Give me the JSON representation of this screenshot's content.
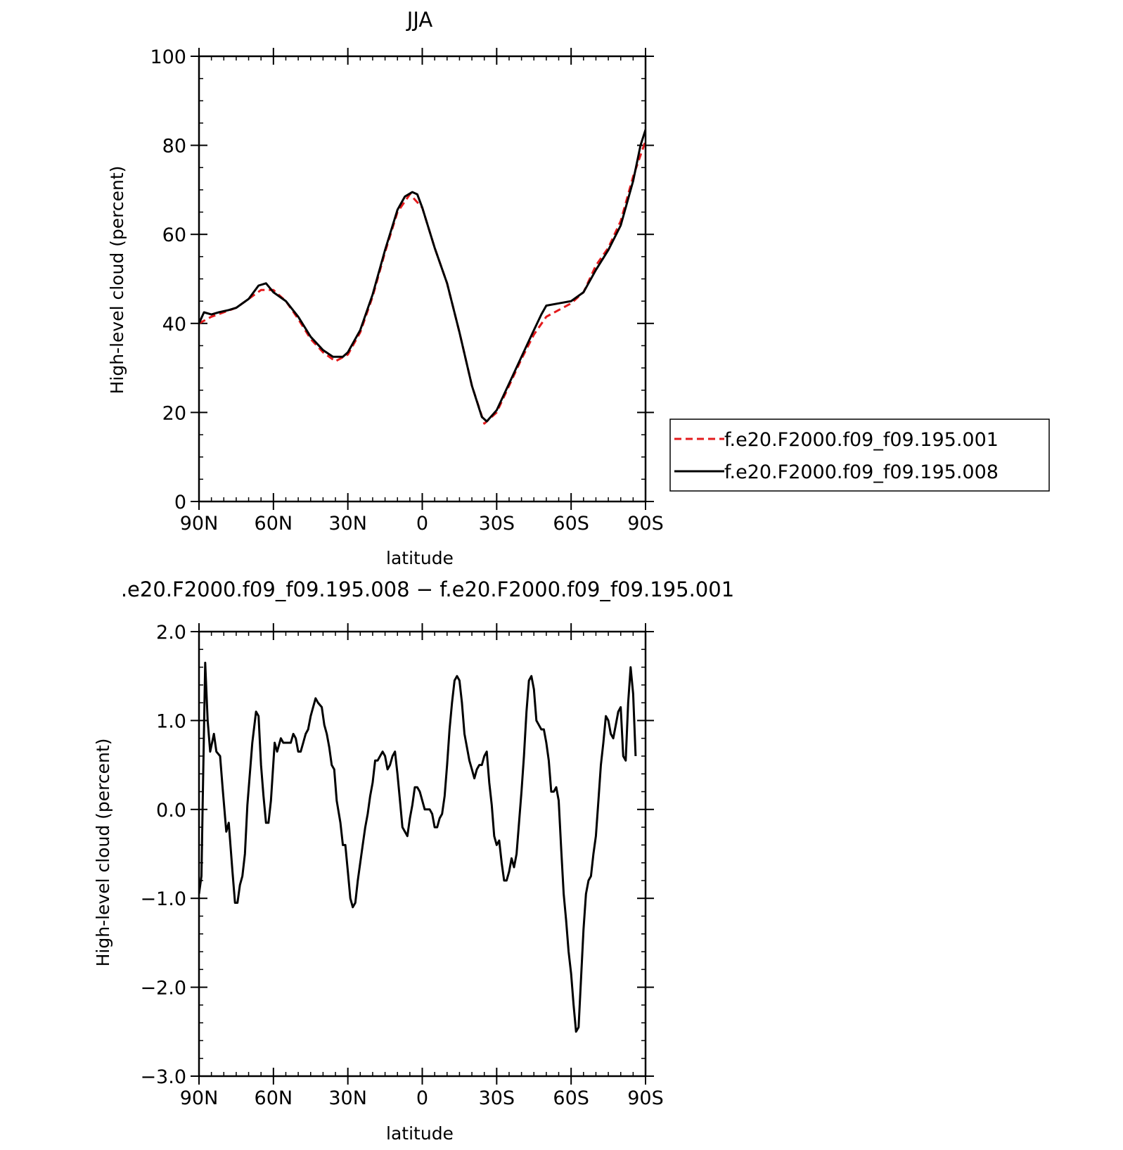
{
  "chart_data": [
    {
      "type": "line",
      "title": "JJA",
      "xlabel": "latitude",
      "ylabel": "High-level cloud (percent)",
      "xlim": [
        90,
        -90
      ],
      "ylim": [
        0,
        100
      ],
      "x_ticks": [
        {
          "value": 90,
          "label": "90N"
        },
        {
          "value": 60,
          "label": "60N"
        },
        {
          "value": 30,
          "label": "30N"
        },
        {
          "value": 0,
          "label": "0"
        },
        {
          "value": -30,
          "label": "30S"
        },
        {
          "value": -60,
          "label": "60S"
        },
        {
          "value": -90,
          "label": "90S"
        }
      ],
      "y_ticks": [
        {
          "value": 0,
          "label": "0"
        },
        {
          "value": 20,
          "label": "20"
        },
        {
          "value": 40,
          "label": "40"
        },
        {
          "value": 60,
          "label": "60"
        },
        {
          "value": 80,
          "label": "80"
        },
        {
          "value": 100,
          "label": "100"
        }
      ],
      "legend_position": "right",
      "series": [
        {
          "name": "f.e20.F2000.f09_f09.195.001",
          "color": "#e31a1c",
          "dash": "dashed",
          "points": [
            [
              90,
              40
            ],
            [
              85,
              41.5
            ],
            [
              80,
              42.5
            ],
            [
              75,
              43.5
            ],
            [
              70,
              45.5
            ],
            [
              65,
              47.5
            ],
            [
              60,
              47.5
            ],
            [
              55,
              45
            ],
            [
              50,
              41
            ],
            [
              45,
              36.5
            ],
            [
              40,
              33.5
            ],
            [
              35,
              31.5
            ],
            [
              30,
              33
            ],
            [
              25,
              38
            ],
            [
              20,
              46
            ],
            [
              15,
              56
            ],
            [
              10,
              65
            ],
            [
              5,
              69
            ],
            [
              0,
              66
            ],
            [
              -5,
              57
            ],
            [
              -10,
              49
            ],
            [
              -15,
              38
            ],
            [
              -20,
              26
            ],
            [
              -25,
              17.5
            ],
            [
              -30,
              20
            ],
            [
              -35,
              26
            ],
            [
              -40,
              32
            ],
            [
              -45,
              37.5
            ],
            [
              -50,
              41.5
            ],
            [
              -55,
              43
            ],
            [
              -60,
              44.5
            ],
            [
              -65,
              47
            ],
            [
              -70,
              53
            ],
            [
              -75,
              57
            ],
            [
              -80,
              63
            ],
            [
              -85,
              73
            ],
            [
              -90,
              81
            ],
            [
              -91,
              82.5
            ]
          ]
        },
        {
          "name": "f.e20.F2000.f09_f09.195.008",
          "color": "#000000",
          "dash": "solid",
          "points": [
            [
              90,
              40
            ],
            [
              88,
              42.5
            ],
            [
              85,
              42
            ],
            [
              82,
              42.5
            ],
            [
              78,
              43
            ],
            [
              75,
              43.5
            ],
            [
              70,
              45.5
            ],
            [
              66,
              48.5
            ],
            [
              63,
              49
            ],
            [
              60,
              47
            ],
            [
              55,
              45
            ],
            [
              50,
              41.5
            ],
            [
              45,
              37
            ],
            [
              40,
              34
            ],
            [
              36,
              32.5
            ],
            [
              32,
              32.5
            ],
            [
              30,
              33.5
            ],
            [
              25,
              38.5
            ],
            [
              20,
              46.5
            ],
            [
              15,
              56.5
            ],
            [
              10,
              65.5
            ],
            [
              7,
              68.5
            ],
            [
              4,
              69.5
            ],
            [
              2,
              69
            ],
            [
              0,
              66
            ],
            [
              -5,
              57
            ],
            [
              -10,
              49
            ],
            [
              -15,
              38
            ],
            [
              -20,
              26
            ],
            [
              -24,
              19
            ],
            [
              -26,
              18
            ],
            [
              -30,
              20.5
            ],
            [
              -35,
              26.5
            ],
            [
              -40,
              32.5
            ],
            [
              -45,
              38.5
            ],
            [
              -48,
              42
            ],
            [
              -50,
              44
            ],
            [
              -55,
              44.5
            ],
            [
              -60,
              45
            ],
            [
              -65,
              47
            ],
            [
              -70,
              52
            ],
            [
              -75,
              56.5
            ],
            [
              -80,
              62
            ],
            [
              -85,
              72
            ],
            [
              -88,
              80
            ],
            [
              -90,
              83.5
            ],
            [
              -91,
              83
            ]
          ]
        }
      ]
    },
    {
      "type": "line",
      "title": ".e20.F2000.f09_f09.195.008 − f.e20.F2000.f09_f09.195.001",
      "xlabel": "latitude",
      "ylabel": "High-level cloud (percent)",
      "xlim": [
        90,
        -90
      ],
      "ylim": [
        -3.0,
        2.0
      ],
      "x_ticks": [
        {
          "value": 90,
          "label": "90N"
        },
        {
          "value": 60,
          "label": "60N"
        },
        {
          "value": 30,
          "label": "30N"
        },
        {
          "value": 0,
          "label": "0"
        },
        {
          "value": -30,
          "label": "30S"
        },
        {
          "value": -60,
          "label": "60S"
        },
        {
          "value": -90,
          "label": "90S"
        }
      ],
      "y_ticks": [
        {
          "value": -3.0,
          "label": "−3.0"
        },
        {
          "value": -2.0,
          "label": "−2.0"
        },
        {
          "value": -1.0,
          "label": "−1.0"
        },
        {
          "value": 0.0,
          "label": "0.0"
        },
        {
          "value": 1.0,
          "label": "1.0"
        },
        {
          "value": 2.0,
          "label": "2.0"
        }
      ],
      "series": [
        {
          "color": "#000000",
          "dash": "solid",
          "points": [
            [
              90,
              -0.95
            ],
            [
              89,
              -0.75
            ],
            [
              88.5,
              0.1
            ],
            [
              87.5,
              1.65
            ],
            [
              86.5,
              1.0
            ],
            [
              85.5,
              0.65
            ],
            [
              84,
              0.85
            ],
            [
              83,
              0.65
            ],
            [
              81.5,
              0.6
            ],
            [
              80.5,
              0.25
            ],
            [
              79,
              -0.25
            ],
            [
              78,
              -0.15
            ],
            [
              76.5,
              -0.7
            ],
            [
              75.5,
              -1.05
            ],
            [
              74.5,
              -1.05
            ],
            [
              73.5,
              -0.85
            ],
            [
              72.5,
              -0.75
            ],
            [
              71.5,
              -0.5
            ],
            [
              70.5,
              0.05
            ],
            [
              69.5,
              0.4
            ],
            [
              68.5,
              0.75
            ],
            [
              67,
              1.1
            ],
            [
              66,
              1.05
            ],
            [
              65,
              0.5
            ],
            [
              64,
              0.15
            ],
            [
              63,
              -0.15
            ],
            [
              62,
              -0.15
            ],
            [
              61,
              0.1
            ],
            [
              59.5,
              0.75
            ],
            [
              58.5,
              0.65
            ],
            [
              57,
              0.8
            ],
            [
              56,
              0.75
            ],
            [
              54.5,
              0.75
            ],
            [
              53,
              0.75
            ],
            [
              52,
              0.85
            ],
            [
              51,
              0.8
            ],
            [
              50,
              0.65
            ],
            [
              49,
              0.65
            ],
            [
              48,
              0.75
            ],
            [
              47,
              0.85
            ],
            [
              46,
              0.9
            ],
            [
              45,
              1.05
            ],
            [
              44,
              1.15
            ],
            [
              43,
              1.25
            ],
            [
              42,
              1.2
            ],
            [
              40.5,
              1.15
            ],
            [
              39.5,
              0.95
            ],
            [
              38.5,
              0.85
            ],
            [
              37.5,
              0.7
            ],
            [
              36.5,
              0.5
            ],
            [
              35.5,
              0.45
            ],
            [
              34.5,
              0.1
            ],
            [
              33,
              -0.15
            ],
            [
              32,
              -0.4
            ],
            [
              31,
              -0.4
            ],
            [
              30,
              -0.7
            ],
            [
              29,
              -1.0
            ],
            [
              28,
              -1.1
            ],
            [
              27,
              -1.05
            ],
            [
              26,
              -0.8
            ],
            [
              25,
              -0.6
            ],
            [
              24,
              -0.4
            ],
            [
              23,
              -0.2
            ],
            [
              22,
              -0.05
            ],
            [
              21,
              0.15
            ],
            [
              20,
              0.3
            ],
            [
              19,
              0.55
            ],
            [
              18,
              0.55
            ],
            [
              17,
              0.6
            ],
            [
              16,
              0.65
            ],
            [
              15,
              0.6
            ],
            [
              14,
              0.45
            ],
            [
              13,
              0.5
            ],
            [
              12,
              0.6
            ],
            [
              11,
              0.65
            ],
            [
              10,
              0.4
            ],
            [
              9,
              0.1
            ],
            [
              8,
              -0.2
            ],
            [
              7,
              -0.25
            ],
            [
              6,
              -0.3
            ],
            [
              5,
              -0.1
            ],
            [
              4,
              0.05
            ],
            [
              3,
              0.25
            ],
            [
              2,
              0.25
            ],
            [
              1,
              0.2
            ],
            [
              0,
              0.1
            ],
            [
              -1,
              0.0
            ],
            [
              -2,
              0.0
            ],
            [
              -3,
              -0.0
            ],
            [
              -4,
              -0.05
            ],
            [
              -5,
              -0.2
            ],
            [
              -6,
              -0.2
            ],
            [
              -7,
              -0.1
            ],
            [
              -8,
              -0.05
            ],
            [
              -9,
              0.15
            ],
            [
              -10,
              0.5
            ],
            [
              -11,
              0.9
            ],
            [
              -12,
              1.2
            ],
            [
              -13,
              1.45
            ],
            [
              -14,
              1.5
            ],
            [
              -15,
              1.45
            ],
            [
              -16,
              1.2
            ],
            [
              -17,
              0.85
            ],
            [
              -18,
              0.7
            ],
            [
              -19,
              0.55
            ],
            [
              -20,
              0.45
            ],
            [
              -21,
              0.35
            ],
            [
              -22,
              0.45
            ],
            [
              -23,
              0.5
            ],
            [
              -24,
              0.5
            ],
            [
              -25,
              0.6
            ],
            [
              -26,
              0.65
            ],
            [
              -27,
              0.3
            ],
            [
              -28,
              0.05
            ],
            [
              -29,
              -0.3
            ],
            [
              -30,
              -0.4
            ],
            [
              -31,
              -0.35
            ],
            [
              -32,
              -0.6
            ],
            [
              -33,
              -0.8
            ],
            [
              -34,
              -0.8
            ],
            [
              -35,
              -0.7
            ],
            [
              -36,
              -0.55
            ],
            [
              -37,
              -0.65
            ],
            [
              -38,
              -0.5
            ],
            [
              -39,
              -0.15
            ],
            [
              -40,
              0.2
            ],
            [
              -41,
              0.6
            ],
            [
              -42,
              1.1
            ],
            [
              -43,
              1.45
            ],
            [
              -44,
              1.5
            ],
            [
              -45,
              1.35
            ],
            [
              -46,
              1.0
            ],
            [
              -47,
              0.95
            ],
            [
              -48,
              0.9
            ],
            [
              -49,
              0.9
            ],
            [
              -50,
              0.75
            ],
            [
              -51,
              0.55
            ],
            [
              -52,
              0.2
            ],
            [
              -53,
              0.2
            ],
            [
              -54,
              0.25
            ],
            [
              -55,
              0.1
            ],
            [
              -56,
              -0.45
            ],
            [
              -57,
              -0.95
            ],
            [
              -58,
              -1.25
            ],
            [
              -59,
              -1.6
            ],
            [
              -60,
              -1.85
            ],
            [
              -61,
              -2.2
            ],
            [
              -62,
              -2.5
            ],
            [
              -63,
              -2.45
            ],
            [
              -64,
              -1.9
            ],
            [
              -65,
              -1.35
            ],
            [
              -66,
              -0.95
            ],
            [
              -67,
              -0.8
            ],
            [
              -68,
              -0.75
            ],
            [
              -69,
              -0.5
            ],
            [
              -70,
              -0.3
            ],
            [
              -71,
              0.1
            ],
            [
              -72,
              0.5
            ],
            [
              -73,
              0.75
            ],
            [
              -74,
              1.05
            ],
            [
              -75,
              1.0
            ],
            [
              -76,
              0.85
            ],
            [
              -77,
              0.8
            ],
            [
              -78,
              0.95
            ],
            [
              -79,
              1.1
            ],
            [
              -80,
              1.15
            ],
            [
              -81,
              0.6
            ],
            [
              -82,
              0.55
            ],
            [
              -83,
              1.2
            ],
            [
              -84,
              1.6
            ],
            [
              -85,
              1.3
            ],
            [
              -86,
              0.6
            ]
          ]
        }
      ]
    }
  ]
}
